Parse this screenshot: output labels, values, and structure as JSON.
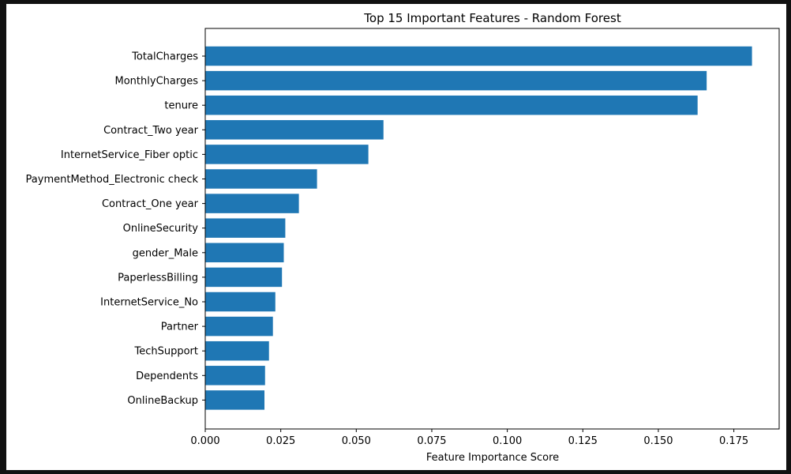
{
  "chart_data": {
    "type": "bar",
    "orientation": "horizontal",
    "title": "Top 15 Important Features - Random Forest",
    "xlabel": "Feature Importance Score",
    "ylabel": "",
    "xlim": [
      0,
      0.19
    ],
    "xticks": [
      0.0,
      0.025,
      0.05,
      0.075,
      0.1,
      0.125,
      0.15,
      0.175
    ],
    "xtick_labels": [
      "0.000",
      "0.025",
      "0.050",
      "0.075",
      "0.100",
      "0.125",
      "0.150",
      "0.175"
    ],
    "grid": false,
    "bar_color": "#1f77b4",
    "categories": [
      "TotalCharges",
      "MonthlyCharges",
      "tenure",
      "Contract_Two year",
      "InternetService_Fiber optic",
      "PaymentMethod_Electronic check",
      "Contract_One year",
      "OnlineSecurity",
      "gender_Male",
      "PaperlessBilling",
      "InternetService_No",
      "Partner",
      "TechSupport",
      "Dependents",
      "OnlineBackup"
    ],
    "values": [
      0.181,
      0.166,
      0.163,
      0.059,
      0.054,
      0.037,
      0.031,
      0.0265,
      0.026,
      0.0254,
      0.0232,
      0.0224,
      0.0211,
      0.0198,
      0.0196
    ]
  }
}
